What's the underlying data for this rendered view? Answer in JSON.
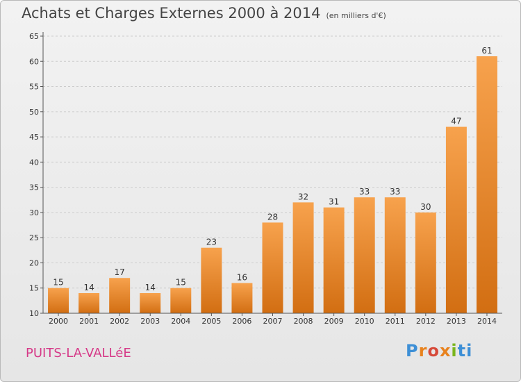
{
  "header": {
    "title": "Achats et Charges Externes 2000 à 2014",
    "subtitle": "(en milliers d'€)"
  },
  "location": "PUITS-LA-VALLéE",
  "brand": {
    "name": "Proxiti"
  },
  "colors": {
    "bar_light": "#f7a24d",
    "bar_dark": "#d26e12",
    "axis": "#555555",
    "grid": "#cccccc"
  },
  "chart_data": {
    "type": "bar",
    "title": "Achats et Charges Externes 2000 à 2014",
    "subtitle": "(en milliers d'€)",
    "xlabel": "",
    "ylabel": "",
    "categories": [
      "2000",
      "2001",
      "2002",
      "2003",
      "2004",
      "2005",
      "2006",
      "2007",
      "2008",
      "2009",
      "2010",
      "2011",
      "2012",
      "2013",
      "2014"
    ],
    "values": [
      15,
      14,
      17,
      14,
      15,
      23,
      16,
      28,
      32,
      31,
      33,
      33,
      30,
      47,
      61
    ],
    "ylim": [
      10,
      65
    ],
    "yticks": [
      10,
      15,
      20,
      25,
      30,
      35,
      40,
      45,
      50,
      55,
      60,
      65
    ],
    "grid": true,
    "legend": "none"
  }
}
